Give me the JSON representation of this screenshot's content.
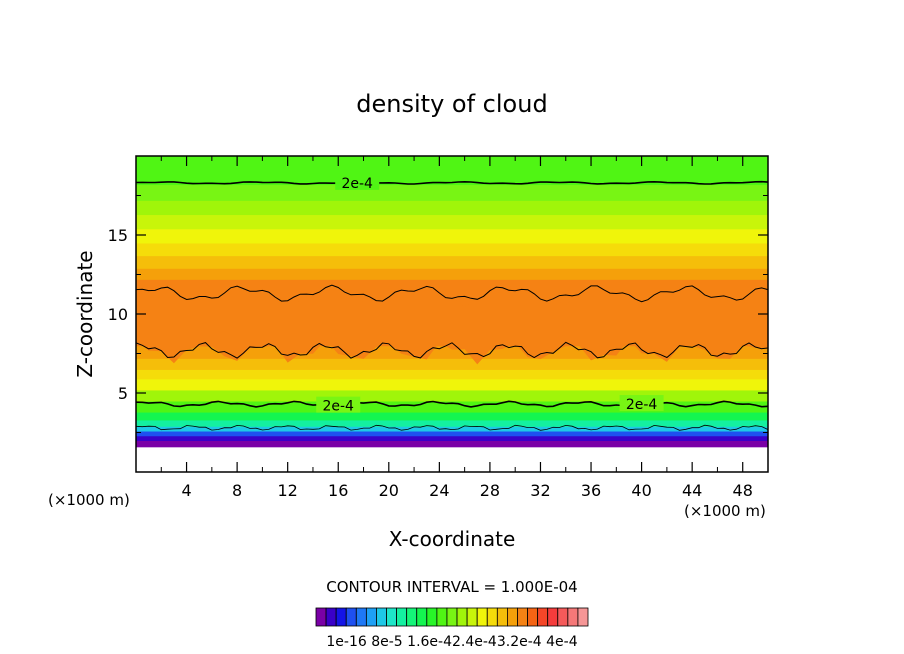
{
  "chart_data": {
    "type": "heatmap",
    "title": "density of cloud",
    "xlabel": "X-coordinate",
    "ylabel": "Z-coordinate",
    "x_unit_label_left": "(×1000 m)",
    "x_unit_label_right": "(×1000 m)",
    "xlim": [
      0,
      50
    ],
    "ylim": [
      0,
      20
    ],
    "x_ticks": [
      4,
      8,
      12,
      16,
      20,
      24,
      28,
      32,
      36,
      40,
      44,
      48
    ],
    "y_ticks": [
      5,
      10,
      15
    ],
    "contour_interval_text": "CONTOUR INTERVAL = 1.000E-04",
    "contour_labels": [
      {
        "text": "2e-4",
        "x": 16,
        "z": 4.2
      },
      {
        "text": "2e-4",
        "x": 40,
        "z": 4.3
      },
      {
        "text": "2e-4",
        "x": 17.5,
        "z": 18.3
      }
    ],
    "colorbar_tick_labels": [
      "1e-16",
      "8e-5",
      "1.6e-4",
      "2.4e-4",
      "3.2e-4",
      "4e-4"
    ],
    "colorbar_tick_text": "1e-16 8e-5 1.6e-42.4e-43.2e-4 4e-4",
    "colorbar_colors": [
      "#7a00a6",
      "#3a00c8",
      "#1414e6",
      "#1e50f0",
      "#1e78f5",
      "#1ea0f5",
      "#1ec8e6",
      "#1ee6c8",
      "#14f0a0",
      "#14f578",
      "#14f550",
      "#28f528",
      "#50f514",
      "#78f514",
      "#a0f50a",
      "#c8f50a",
      "#f0f50a",
      "#f5dc0a",
      "#f5be0a",
      "#f5a00a",
      "#f58214",
      "#f56414",
      "#f54628",
      "#f53c3c",
      "#f55a5a",
      "#f57878",
      "#f59696"
    ],
    "z_profile": [
      {
        "z": 1.6,
        "level": 0
      },
      {
        "z": 2.0,
        "level": 1
      },
      {
        "z": 2.3,
        "level": 3
      },
      {
        "z": 2.6,
        "level": 6
      },
      {
        "z": 2.9,
        "level": 8
      },
      {
        "z": 3.3,
        "level": 10
      },
      {
        "z": 3.8,
        "level": 12
      },
      {
        "z": 4.5,
        "level": 14
      },
      {
        "z": 5.2,
        "level": 16
      },
      {
        "z": 5.9,
        "level": 17
      },
      {
        "z": 6.5,
        "level": 18
      },
      {
        "z": 7.2,
        "level": 19
      },
      {
        "z": 8.0,
        "level": 20
      },
      {
        "z": 11.4,
        "level": 20
      },
      {
        "z": 12.2,
        "level": 19
      },
      {
        "z": 12.9,
        "level": 18
      },
      {
        "z": 13.7,
        "level": 17
      },
      {
        "z": 14.5,
        "level": 16
      },
      {
        "z": 15.4,
        "level": 15
      },
      {
        "z": 16.3,
        "level": 14
      },
      {
        "z": 17.2,
        "level": 13
      },
      {
        "z": 18.2,
        "level": 12
      },
      {
        "z": 20.0,
        "level": 11
      }
    ],
    "upper_contour_z": 18.3,
    "lower_contour_z": 4.3,
    "grid": false
  }
}
